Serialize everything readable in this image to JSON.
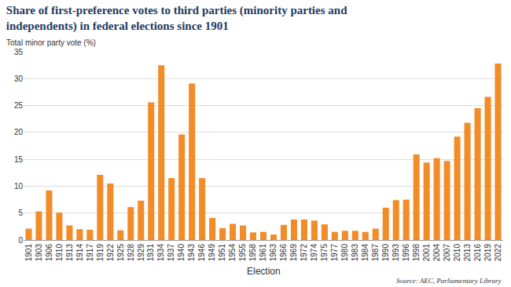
{
  "chart_data": {
    "type": "bar",
    "title": "Share of first-preference votes to third parties (minority parties and\nindependents) in federal elections since 1901",
    "ylabel": "Total minor party vote (%)",
    "xlabel": "Election",
    "source": "Source: AEC, Parliamentary Library",
    "categories": [
      "1901",
      "1903",
      "1906",
      "1910",
      "1913",
      "1914",
      "1917",
      "1919",
      "1922",
      "1925",
      "1928",
      "1929",
      "1931",
      "1934",
      "1937",
      "1940",
      "1943",
      "1946",
      "1949",
      "1951",
      "1954",
      "1955",
      "1958",
      "1961",
      "1963",
      "1966",
      "1969",
      "1972",
      "1974",
      "1975",
      "1977",
      "1980",
      "1983",
      "1984",
      "1987",
      "1990",
      "1993",
      "1996",
      "1998",
      "2001",
      "2004",
      "2007",
      "2010",
      "2013",
      "2016",
      "2019",
      "2022"
    ],
    "values": [
      2.1,
      5.3,
      9.2,
      5.1,
      2.7,
      2.0,
      1.9,
      12.1,
      10.5,
      1.8,
      6.1,
      7.3,
      25.6,
      32.5,
      11.5,
      19.6,
      29.1,
      11.5,
      4.1,
      2.2,
      3.0,
      2.7,
      1.4,
      1.5,
      1.0,
      2.8,
      3.8,
      3.8,
      3.6,
      2.9,
      1.5,
      1.7,
      1.7,
      1.5,
      2.1,
      6.0,
      7.4,
      7.5,
      15.9,
      14.4,
      15.2,
      14.7,
      19.2,
      21.8,
      24.5,
      26.6,
      32.8
    ],
    "color": "#f28c28",
    "ylim": [
      0,
      35
    ],
    "yticks": [
      0,
      5,
      10,
      15,
      20,
      25,
      30,
      35
    ],
    "grid": true
  }
}
